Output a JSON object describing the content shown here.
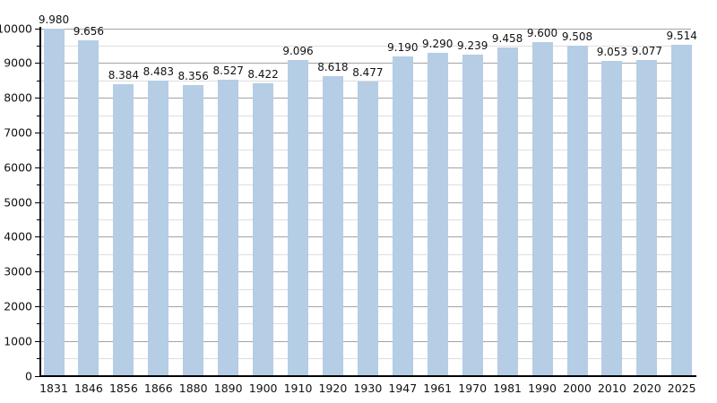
{
  "chart_data": {
    "type": "bar",
    "title": "",
    "xlabel": "",
    "ylabel": "",
    "categories": [
      "1831",
      "1846",
      "1856",
      "1866",
      "1880",
      "1890",
      "1900",
      "1910",
      "1920",
      "1930",
      "1947",
      "1961",
      "1970",
      "1981",
      "1990",
      "2000",
      "2010",
      "2020",
      "2025"
    ],
    "values": [
      9980,
      9656,
      8384,
      8483,
      8356,
      8527,
      8422,
      9096,
      8618,
      8477,
      9190,
      9290,
      9239,
      9458,
      9600,
      9508,
      9053,
      9077,
      9514
    ],
    "value_labels": [
      "9.980",
      "9.656",
      "8.384",
      "8.483",
      "8.356",
      "8.527",
      "8.422",
      "9.096",
      "8.618",
      "8.477",
      "9.190",
      "9.290",
      "9.239",
      "9.458",
      "9.600",
      "9.508",
      "9.053",
      "9.077",
      "9.514"
    ],
    "ylim": [
      0,
      10000
    ],
    "y_major_step": 1000,
    "y_minor_step": 500,
    "y_tick_labels": [
      "0",
      "1000",
      "2000",
      "3000",
      "4000",
      "5000",
      "6000",
      "7000",
      "8000",
      "9000",
      "10000"
    ],
    "grid": "horizontal, major every 1000, minor every 500",
    "legend": "none",
    "colors": {
      "bar_fill": "#b5cde5",
      "major_gridline": "#a3a3a3",
      "minor_gridline": "#dedede",
      "axis": "#000000",
      "text": "#111111",
      "background": "#ffffff"
    }
  }
}
